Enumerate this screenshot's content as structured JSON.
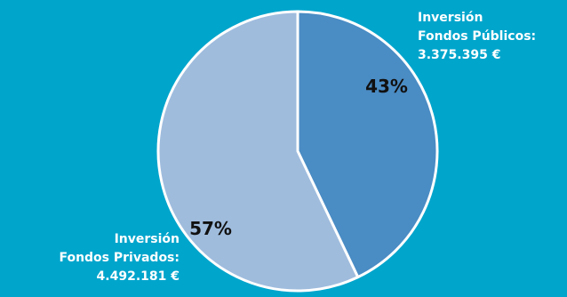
{
  "colors": {
    "background": "#00A5CC",
    "slice_publicos": "#4A8CC4",
    "slice_privados": "#9FBCDD",
    "outline": "#FFFFFF"
  },
  "chart_data": {
    "type": "pie",
    "slices": [
      {
        "pct_label": "43%",
        "value": 3375395,
        "value_label": "3.375.395 €",
        "label_lines": [
          "Inversión",
          "Fondos Públicos:",
          "3.375.395 €"
        ]
      },
      {
        "pct_label": "57%",
        "value": 4492181,
        "value_label": "4.492.181 €",
        "label_lines": [
          "Inversión",
          "Fondos Privados:",
          "4.492.181 €"
        ]
      }
    ]
  }
}
